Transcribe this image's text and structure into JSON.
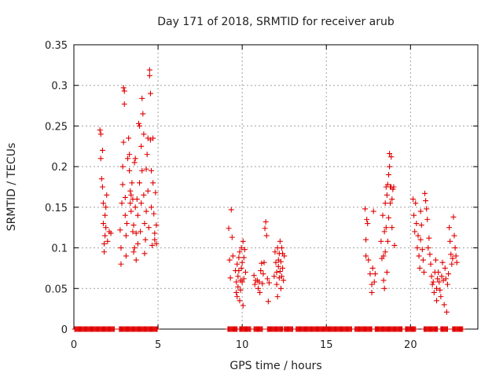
{
  "chart_data": {
    "type": "scatter",
    "title": "Day 171 of 2018, SRMTID for receiver arub",
    "xlabel": "GPS time / hours",
    "ylabel": "SRMTID / TECUs",
    "xlim": [
      0,
      24
    ],
    "ylim": [
      0,
      0.35
    ],
    "x_ticks": [
      "0",
      "5",
      "10",
      "15",
      "20"
    ],
    "y_ticks": [
      "0",
      "0.05",
      "0.1",
      "0.15",
      "0.2",
      "0.25",
      "0.3",
      "0.35"
    ],
    "grid": true,
    "marker": "+",
    "color": "#e00000",
    "series": [
      {
        "name": "SRMTID",
        "points": [
          [
            1.55,
            0.245
          ],
          [
            1.6,
            0.24
          ],
          [
            1.6,
            0.21
          ],
          [
            1.65,
            0.185
          ],
          [
            1.7,
            0.22
          ],
          [
            1.7,
            0.175
          ],
          [
            1.75,
            0.155
          ],
          [
            1.75,
            0.13
          ],
          [
            1.8,
            0.105
          ],
          [
            1.8,
            0.095
          ],
          [
            1.85,
            0.14
          ],
          [
            1.85,
            0.115
          ],
          [
            1.9,
            0.15
          ],
          [
            1.9,
            0.125
          ],
          [
            1.95,
            0.165
          ],
          [
            2.0,
            0.108
          ],
          [
            2.1,
            0.12
          ],
          [
            2.2,
            0.118
          ],
          [
            2.75,
            0.122
          ],
          [
            2.8,
            0.1
          ],
          [
            2.8,
            0.08
          ],
          [
            2.85,
            0.155
          ],
          [
            2.9,
            0.2
          ],
          [
            2.9,
            0.178
          ],
          [
            2.95,
            0.23
          ],
          [
            2.95,
            0.297
          ],
          [
            3.0,
            0.277
          ],
          [
            3.0,
            0.293
          ],
          [
            3.05,
            0.14
          ],
          [
            3.05,
            0.162
          ],
          [
            3.1,
            0.09
          ],
          [
            3.1,
            0.115
          ],
          [
            3.15,
            0.13
          ],
          [
            3.2,
            0.21
          ],
          [
            3.25,
            0.235
          ],
          [
            3.3,
            0.215
          ],
          [
            3.3,
            0.195
          ],
          [
            3.35,
            0.17
          ],
          [
            3.35,
            0.155
          ],
          [
            3.4,
            0.165
          ],
          [
            3.4,
            0.145
          ],
          [
            3.45,
            0.18
          ],
          [
            3.5,
            0.16
          ],
          [
            3.5,
            0.12
          ],
          [
            3.55,
            0.128
          ],
          [
            3.55,
            0.095
          ],
          [
            3.6,
            0.1
          ],
          [
            3.6,
            0.205
          ],
          [
            3.65,
            0.21
          ],
          [
            3.65,
            0.15
          ],
          [
            3.7,
            0.118
          ],
          [
            3.7,
            0.085
          ],
          [
            3.75,
            0.16
          ],
          [
            3.8,
            0.14
          ],
          [
            3.8,
            0.105
          ],
          [
            3.85,
            0.253
          ],
          [
            3.9,
            0.25
          ],
          [
            3.9,
            0.18
          ],
          [
            3.95,
            0.12
          ],
          [
            4.0,
            0.155
          ],
          [
            4.0,
            0.225
          ],
          [
            4.05,
            0.195
          ],
          [
            4.05,
            0.284
          ],
          [
            4.1,
            0.265
          ],
          [
            4.15,
            0.24
          ],
          [
            4.15,
            0.165
          ],
          [
            4.2,
            0.13
          ],
          [
            4.2,
            0.093
          ],
          [
            4.25,
            0.11
          ],
          [
            4.3,
            0.197
          ],
          [
            4.3,
            0.145
          ],
          [
            4.35,
            0.215
          ],
          [
            4.4,
            0.235
          ],
          [
            4.4,
            0.17
          ],
          [
            4.45,
            0.125
          ],
          [
            4.5,
            0.319
          ],
          [
            4.5,
            0.312
          ],
          [
            4.55,
            0.29
          ],
          [
            4.55,
            0.233
          ],
          [
            4.6,
            0.195
          ],
          [
            4.6,
            0.15
          ],
          [
            4.65,
            0.103
          ],
          [
            4.7,
            0.235
          ],
          [
            4.7,
            0.18
          ],
          [
            4.75,
            0.142
          ],
          [
            4.8,
            0.118
          ],
          [
            4.8,
            0.11
          ],
          [
            4.85,
            0.168
          ],
          [
            4.9,
            0.128
          ],
          [
            4.9,
            0.105
          ],
          [
            9.2,
            0.124
          ],
          [
            9.25,
            0.085
          ],
          [
            9.3,
            0.063
          ],
          [
            9.35,
            0.147
          ],
          [
            9.4,
            0.113
          ],
          [
            9.45,
            0.09
          ],
          [
            9.6,
            0.072
          ],
          [
            9.65,
            0.058
          ],
          [
            9.65,
            0.045
          ],
          [
            9.7,
            0.08
          ],
          [
            9.7,
            0.04
          ],
          [
            9.75,
            0.052
          ],
          [
            9.75,
            0.065
          ],
          [
            9.8,
            0.088
          ],
          [
            9.8,
            0.072
          ],
          [
            9.85,
            0.095
          ],
          [
            9.85,
            0.035
          ],
          [
            9.9,
            0.06
          ],
          [
            9.9,
            0.048
          ],
          [
            9.95,
            0.1
          ],
          [
            9.95,
            0.075
          ],
          [
            10.0,
            0.082
          ],
          [
            10.0,
            0.058
          ],
          [
            10.05,
            0.108
          ],
          [
            10.05,
            0.029
          ],
          [
            10.1,
            0.088
          ],
          [
            10.1,
            0.062
          ],
          [
            10.15,
            0.098
          ],
          [
            10.2,
            0.07
          ],
          [
            10.7,
            0.066
          ],
          [
            10.75,
            0.055
          ],
          [
            10.8,
            0.06
          ],
          [
            10.9,
            0.06
          ],
          [
            10.95,
            0.05
          ],
          [
            11.0,
            0.058
          ],
          [
            11.05,
            0.045
          ],
          [
            11.1,
            0.072
          ],
          [
            11.15,
            0.081
          ],
          [
            11.2,
            0.056
          ],
          [
            11.25,
            0.068
          ],
          [
            11.3,
            0.082
          ],
          [
            11.35,
            0.124
          ],
          [
            11.4,
            0.132
          ],
          [
            11.45,
            0.115
          ],
          [
            11.5,
            0.062
          ],
          [
            11.55,
            0.034
          ],
          [
            11.6,
            0.057
          ],
          [
            11.9,
            0.065
          ],
          [
            11.95,
            0.095
          ],
          [
            12.0,
            0.082
          ],
          [
            12.05,
            0.07
          ],
          [
            12.05,
            0.055
          ],
          [
            12.1,
            0.1
          ],
          [
            12.1,
            0.04
          ],
          [
            12.15,
            0.077
          ],
          [
            12.15,
            0.085
          ],
          [
            12.2,
            0.093
          ],
          [
            12.2,
            0.063
          ],
          [
            12.25,
            0.108
          ],
          [
            12.25,
            0.071
          ],
          [
            12.3,
            0.083
          ],
          [
            12.3,
            0.05
          ],
          [
            12.35,
            0.1
          ],
          [
            12.35,
            0.065
          ],
          [
            12.4,
            0.093
          ],
          [
            12.4,
            0.075
          ],
          [
            12.45,
            0.06
          ],
          [
            12.5,
            0.09
          ],
          [
            17.3,
            0.148
          ],
          [
            17.35,
            0.11
          ],
          [
            17.35,
            0.09
          ],
          [
            17.4,
            0.135
          ],
          [
            17.45,
            0.13
          ],
          [
            17.5,
            0.085
          ],
          [
            17.6,
            0.068
          ],
          [
            17.7,
            0.055
          ],
          [
            17.7,
            0.045
          ],
          [
            17.75,
            0.075
          ],
          [
            17.8,
            0.145
          ],
          [
            17.85,
            0.058
          ],
          [
            17.9,
            0.068
          ],
          [
            18.25,
            0.108
          ],
          [
            18.3,
            0.087
          ],
          [
            18.35,
            0.14
          ],
          [
            18.4,
            0.09
          ],
          [
            18.4,
            0.06
          ],
          [
            18.45,
            0.12
          ],
          [
            18.45,
            0.05
          ],
          [
            18.5,
            0.155
          ],
          [
            18.5,
            0.095
          ],
          [
            18.55,
            0.175
          ],
          [
            18.55,
            0.125
          ],
          [
            18.6,
            0.165
          ],
          [
            18.6,
            0.07
          ],
          [
            18.65,
            0.178
          ],
          [
            18.65,
            0.108
          ],
          [
            18.7,
            0.19
          ],
          [
            18.7,
            0.137
          ],
          [
            18.75,
            0.216
          ],
          [
            18.75,
            0.2
          ],
          [
            18.8,
            0.175
          ],
          [
            18.8,
            0.155
          ],
          [
            18.85,
            0.212
          ],
          [
            18.85,
            0.175
          ],
          [
            18.9,
            0.16
          ],
          [
            18.9,
            0.125
          ],
          [
            18.95,
            0.172
          ],
          [
            19.0,
            0.175
          ],
          [
            19.05,
            0.103
          ],
          [
            20.15,
            0.16
          ],
          [
            20.2,
            0.14
          ],
          [
            20.25,
            0.12
          ],
          [
            20.3,
            0.155
          ],
          [
            20.35,
            0.13
          ],
          [
            20.4,
            0.1
          ],
          [
            20.45,
            0.115
          ],
          [
            20.5,
            0.09
          ],
          [
            20.55,
            0.075
          ],
          [
            20.6,
            0.145
          ],
          [
            20.6,
            0.11
          ],
          [
            20.65,
            0.128
          ],
          [
            20.7,
            0.098
          ],
          [
            20.75,
            0.085
          ],
          [
            20.8,
            0.07
          ],
          [
            20.85,
            0.167
          ],
          [
            20.9,
            0.158
          ],
          [
            20.95,
            0.148
          ],
          [
            21.0,
            0.135
          ],
          [
            21.05,
            0.1
          ],
          [
            21.1,
            0.112
          ],
          [
            21.15,
            0.092
          ],
          [
            21.2,
            0.08
          ],
          [
            21.25,
            0.065
          ],
          [
            21.3,
            0.055
          ],
          [
            21.35,
            0.058
          ],
          [
            21.4,
            0.045
          ],
          [
            21.45,
            0.07
          ],
          [
            21.5,
            0.085
          ],
          [
            21.55,
            0.05
          ],
          [
            21.55,
            0.035
          ],
          [
            21.6,
            0.062
          ],
          [
            21.65,
            0.07
          ],
          [
            21.7,
            0.058
          ],
          [
            21.75,
            0.048
          ],
          [
            21.8,
            0.04
          ],
          [
            21.85,
            0.065
          ],
          [
            21.9,
            0.082
          ],
          [
            21.95,
            0.06
          ],
          [
            22.0,
            0.03
          ],
          [
            22.05,
            0.075
          ],
          [
            22.1,
            0.062
          ],
          [
            22.15,
            0.021
          ],
          [
            22.2,
            0.055
          ],
          [
            22.25,
            0.068
          ],
          [
            22.3,
            0.125
          ],
          [
            22.35,
            0.108
          ],
          [
            22.4,
            0.092
          ],
          [
            22.45,
            0.08
          ],
          [
            22.5,
            0.087
          ],
          [
            22.55,
            0.138
          ],
          [
            22.6,
            0.115
          ],
          [
            22.65,
            0.1
          ],
          [
            22.7,
            0.09
          ],
          [
            22.75,
            0.082
          ]
        ]
      }
    ],
    "baseline_series": {
      "name": "SRMTID zero values",
      "value": 0,
      "x_ranges": [
        [
          0.05,
          2.4
        ],
        [
          2.7,
          4.95
        ],
        [
          9.15,
          9.7
        ],
        [
          9.85,
          10.5
        ],
        [
          10.7,
          11.2
        ],
        [
          11.5,
          12.4
        ],
        [
          12.5,
          13.0
        ],
        [
          13.2,
          16.5
        ],
        [
          16.7,
          17.7
        ],
        [
          17.9,
          19.5
        ],
        [
          19.7,
          20.3
        ],
        [
          20.8,
          21.6
        ],
        [
          21.8,
          22.2
        ],
        [
          22.5,
          23.1
        ]
      ]
    }
  }
}
